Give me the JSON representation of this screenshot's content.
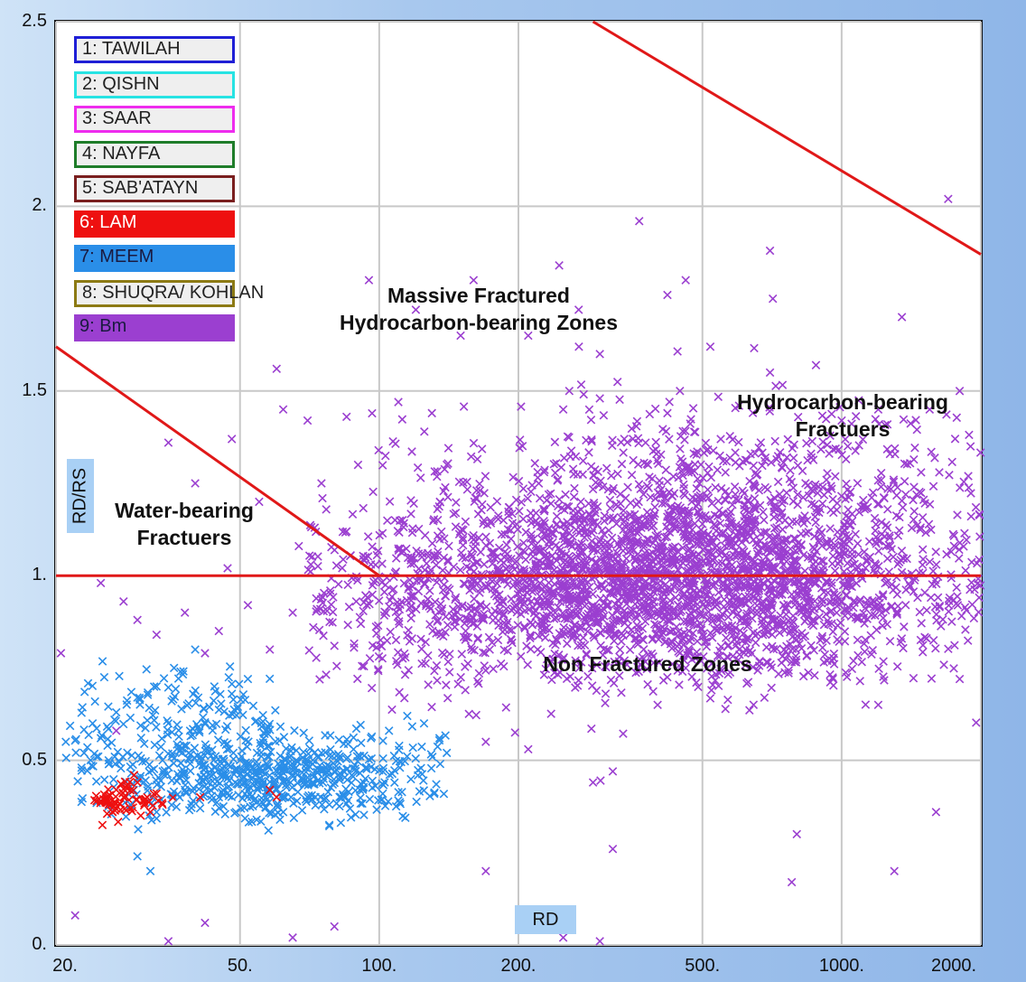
{
  "chart_data": {
    "type": "scatter",
    "xlabel": "RD",
    "ylabel": "RD/RS",
    "x_scale": "log",
    "xlim": [
      20,
      2000
    ],
    "ylim": [
      0,
      2.5
    ],
    "x_ticks": [
      "20.",
      "50.",
      "100.",
      "200.",
      "500.",
      "1000.",
      "2000."
    ],
    "y_ticks": [
      "0.",
      "0.5",
      "1.",
      "1.5",
      "2.",
      "2.5"
    ],
    "grid": true,
    "marker": "x",
    "legend_position": "top-left",
    "legend": [
      {
        "label": "1: TAWILAH",
        "color": "#1f1fd6",
        "style": "outline"
      },
      {
        "label": "2: QISHN",
        "color": "#27e3e3",
        "style": "outline"
      },
      {
        "label": "3: SAAR",
        "color": "#ee2cee",
        "style": "outline"
      },
      {
        "label": "4: NAYFA",
        "color": "#1f7d2a",
        "style": "outline"
      },
      {
        "label": "5: SAB'ATAYN",
        "color": "#7a1f1f",
        "style": "outline"
      },
      {
        "label": "6: LAM",
        "color": "#ee1010",
        "style": "filled"
      },
      {
        "label": "7: MEEM",
        "color": "#2a8ee8",
        "style": "filled"
      },
      {
        "label": "8: SHUQRA/ KOHLAN",
        "color": "#8c7a14",
        "style": "outline"
      },
      {
        "label": "9: Bm",
        "color": "#9b3fd0",
        "style": "filled"
      }
    ],
    "reference_lines": [
      {
        "x": [
          20,
          2000
        ],
        "y": [
          1.0,
          1.0
        ],
        "color": "#e01818"
      },
      {
        "x": [
          20,
          100
        ],
        "y": [
          1.62,
          1.0
        ],
        "color": "#e01818"
      },
      {
        "x": [
          290,
          2000
        ],
        "y": [
          2.5,
          1.87
        ],
        "color": "#e01818"
      }
    ],
    "annotations": [
      {
        "lines": [
          "Massive Fractured",
          "Hydrocarbon-bearing Zones"
        ]
      },
      {
        "lines": [
          "Hydrocarbon-bearing",
          "Fractuers"
        ]
      },
      {
        "lines": [
          "Water-bearing",
          "Fractuers"
        ]
      },
      {
        "lines": [
          "Non Fractured  Zones"
        ]
      }
    ],
    "series": [
      {
        "name": "9: Bm",
        "color": "#9b3fd0",
        "points": [
          [
            160,
            1.8
          ],
          [
            245,
            1.84
          ],
          [
            270,
            1.72
          ],
          [
            365,
            1.96
          ],
          [
            420,
            1.76
          ],
          [
            460,
            1.8
          ],
          [
            700,
            1.88
          ],
          [
            710,
            1.75
          ],
          [
            1700,
            2.02
          ],
          [
            1350,
            1.7
          ],
          [
            95,
            1.8
          ],
          [
            120,
            1.72
          ],
          [
            150,
            1.65
          ],
          [
            210,
            1.65
          ],
          [
            300,
            1.6
          ],
          [
            520,
            1.62
          ],
          [
            880,
            1.57
          ],
          [
            1800,
            1.5
          ],
          [
            1550,
            1.45
          ],
          [
            35,
            1.36
          ],
          [
            48,
            1.37
          ],
          [
            60,
            1.56
          ],
          [
            62,
            1.45
          ],
          [
            70,
            1.42
          ],
          [
            85,
            1.43
          ],
          [
            110,
            1.47
          ],
          [
            130,
            1.44
          ],
          [
            250,
            1.45
          ],
          [
            300,
            1.48
          ],
          [
            420,
            1.44
          ],
          [
            600,
            1.46
          ],
          [
            700,
            1.55
          ],
          [
            1000,
            1.42
          ],
          [
            1200,
            1.45
          ],
          [
            1900,
            1.35
          ],
          [
            40,
            1.25
          ],
          [
            55,
            1.2
          ],
          [
            75,
            1.25
          ],
          [
            90,
            1.3
          ],
          [
            140,
            1.3
          ],
          [
            30,
            0.88
          ],
          [
            33,
            0.84
          ],
          [
            38,
            0.9
          ],
          [
            42,
            0.79
          ],
          [
            45,
            0.85
          ],
          [
            52,
            0.92
          ],
          [
            58,
            0.8
          ],
          [
            65,
            0.9
          ],
          [
            72,
            0.86
          ],
          [
            80,
            0.81
          ],
          [
            25,
            0.98
          ],
          [
            28,
            0.93
          ],
          [
            47,
            1.02
          ],
          [
            67,
            1.08
          ],
          [
            85,
            1.12
          ],
          [
            22,
            1.2
          ],
          [
            20.5,
            0.79
          ],
          [
            27,
            0.58
          ],
          [
            290,
            0.44
          ],
          [
            320,
            0.47
          ],
          [
            170,
            0.55
          ],
          [
            210,
            0.53
          ],
          [
            400,
            0.65
          ],
          [
            460,
            0.75
          ],
          [
            600,
            0.8
          ],
          [
            1200,
            0.65
          ],
          [
            1800,
            0.72
          ],
          [
            800,
            0.3
          ],
          [
            780,
            0.17
          ],
          [
            1300,
            0.2
          ],
          [
            1600,
            0.36
          ],
          [
            320,
            0.26
          ],
          [
            170,
            0.2
          ],
          [
            22,
            0.08
          ],
          [
            42,
            0.06
          ],
          [
            65,
            0.02
          ],
          [
            80,
            0.05
          ],
          [
            35,
            0.01
          ],
          [
            250,
            0.02
          ],
          [
            300,
            0.01
          ]
        ]
      },
      {
        "name": "7: MEEM",
        "color": "#2a8ee8",
        "points": [
          [
            21,
            0.55
          ],
          [
            24,
            0.6
          ],
          [
            27,
            0.63
          ],
          [
            30,
            0.67
          ],
          [
            33,
            0.7
          ],
          [
            36,
            0.75
          ],
          [
            40,
            0.8
          ],
          [
            44,
            0.7
          ],
          [
            48,
            0.68
          ],
          [
            52,
            0.72
          ],
          [
            26,
            0.5
          ],
          [
            30,
            0.45
          ],
          [
            34,
            0.5
          ],
          [
            38,
            0.42
          ],
          [
            42,
            0.48
          ],
          [
            46,
            0.46
          ],
          [
            50,
            0.5
          ],
          [
            55,
            0.45
          ],
          [
            60,
            0.42
          ],
          [
            65,
            0.48
          ],
          [
            70,
            0.5
          ],
          [
            75,
            0.52
          ],
          [
            80,
            0.47
          ],
          [
            88,
            0.53
          ],
          [
            96,
            0.56
          ],
          [
            105,
            0.58
          ],
          [
            115,
            0.62
          ],
          [
            125,
            0.6
          ],
          [
            135,
            0.56
          ],
          [
            140,
            0.52
          ],
          [
            29,
            0.38
          ],
          [
            33,
            0.36
          ],
          [
            37,
            0.4
          ],
          [
            41,
            0.37
          ],
          [
            45,
            0.4
          ],
          [
            49,
            0.36
          ],
          [
            55,
            0.38
          ],
          [
            62,
            0.36
          ],
          [
            70,
            0.4
          ],
          [
            78,
            0.38
          ],
          [
            30,
            0.24
          ],
          [
            32,
            0.2
          ],
          [
            23,
            0.52
          ],
          [
            25,
            0.56
          ],
          [
            35,
            0.6
          ],
          [
            39,
            0.58
          ]
        ]
      },
      {
        "name": "6: LAM",
        "color": "#ee1010",
        "points": [
          [
            25,
            0.39
          ],
          [
            26,
            0.38
          ],
          [
            27,
            0.42
          ],
          [
            28,
            0.4
          ],
          [
            29,
            0.37
          ],
          [
            30,
            0.44
          ],
          [
            31,
            0.39
          ],
          [
            32,
            0.36
          ],
          [
            33,
            0.41
          ],
          [
            34,
            0.38
          ],
          [
            26.5,
            0.36
          ],
          [
            28.5,
            0.43
          ],
          [
            30.5,
            0.35
          ],
          [
            29.5,
            0.46
          ],
          [
            31.5,
            0.4
          ],
          [
            41,
            0.4
          ],
          [
            58,
            0.42
          ],
          [
            60,
            0.4
          ]
        ]
      }
    ],
    "clusters": [
      {
        "series": "9: Bm",
        "color": "#9b3fd0",
        "cx": 400,
        "cy": 0.97,
        "sx": 0.7,
        "sy": 0.13,
        "n": 2600,
        "xmin": 70,
        "xmax": 2000
      },
      {
        "series": "9: Bm",
        "color": "#9b3fd0",
        "cx": 500,
        "cy": 1.2,
        "sx": 0.6,
        "sy": 0.14,
        "n": 700,
        "xmin": 90,
        "xmax": 2000
      },
      {
        "series": "7: MEEM",
        "color": "#2a8ee8",
        "cx": 60,
        "cy": 0.46,
        "sx": 0.38,
        "sy": 0.06,
        "n": 600,
        "xmin": 22,
        "xmax": 140
      },
      {
        "series": "7: MEEM",
        "color": "#2a8ee8",
        "cx": 38,
        "cy": 0.6,
        "sx": 0.35,
        "sy": 0.08,
        "n": 150,
        "xmin": 21,
        "xmax": 60
      },
      {
        "series": "6: LAM",
        "color": "#ee1010",
        "cx": 28.5,
        "cy": 0.39,
        "sx": 0.08,
        "sy": 0.025,
        "n": 60,
        "xmin": 24,
        "xmax": 36
      }
    ]
  }
}
